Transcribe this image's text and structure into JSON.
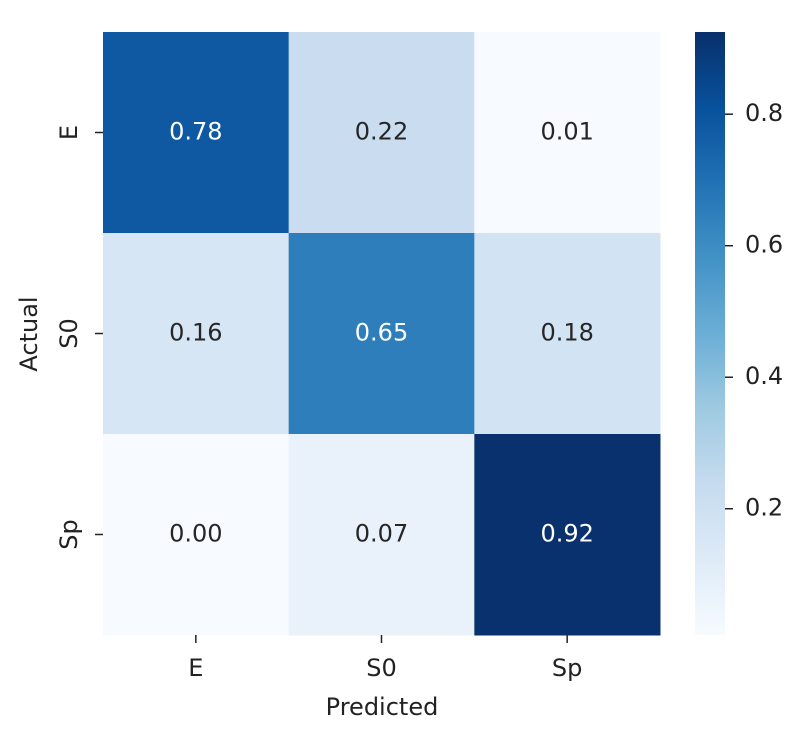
{
  "chart_data": {
    "type": "heatmap",
    "x_label": "Predicted",
    "y_label": "Actual",
    "x_categories": [
      "E",
      "S0",
      "Sp"
    ],
    "y_categories": [
      "E",
      "S0",
      "Sp"
    ],
    "values": [
      [
        0.78,
        0.22,
        0.01
      ],
      [
        0.16,
        0.65,
        0.18
      ],
      [
        0,
        0.07,
        0.92
      ]
    ],
    "value_labels": [
      [
        "0.78",
        "0.22",
        "0.01"
      ],
      [
        "0.16",
        "0.65",
        "0.18"
      ],
      [
        "0.00",
        "0.07",
        "0.92"
      ]
    ],
    "colormap": [
      "#f7fbff",
      "#deebf7",
      "#c6dbef",
      "#9ecae1",
      "#6baed6",
      "#4292c6",
      "#2171b5",
      "#08519c",
      "#08306b"
    ],
    "clim": [
      0.008,
      0.925
    ],
    "colorbar_ticks": [
      0.2,
      0.4,
      0.6,
      0.8
    ]
  }
}
